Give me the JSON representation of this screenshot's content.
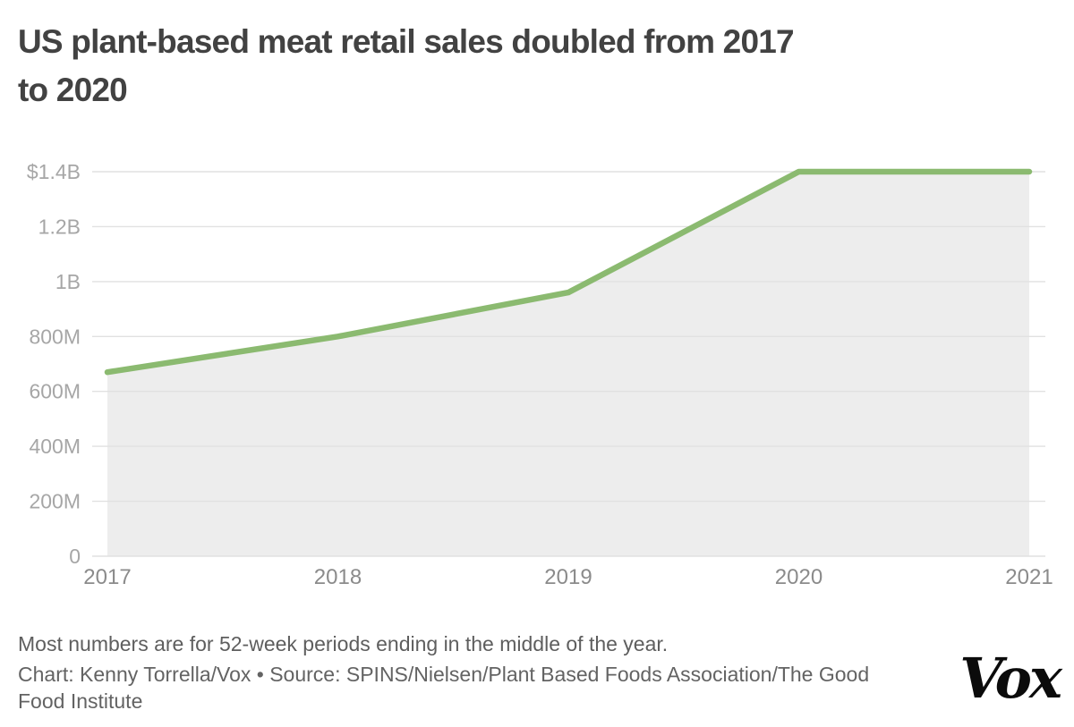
{
  "header": {
    "title_lines": [
      "US plant-based meat retail sales doubled from 2017",
      "to 2020"
    ]
  },
  "chart_data": {
    "type": "area",
    "title": "US plant-based meat retail sales doubled from 2017 to 2020",
    "x": [
      2017,
      2018,
      2019,
      2020,
      2021
    ],
    "x_tick_labels": [
      "2017",
      "2018",
      "2019",
      "2020",
      "2021"
    ],
    "series": [
      {
        "name": "US plant-based meat retail sales (USD, millions)",
        "values_millions": [
          670,
          800,
          960,
          1400,
          1400
        ]
      }
    ],
    "y_tick_values_millions": [
      1400,
      1200,
      1000,
      800,
      600,
      400,
      200,
      0
    ],
    "y_tick_labels": [
      "$1.4B",
      "1.2B",
      "1B",
      "800M",
      "600M",
      "400M",
      "200M",
      "0"
    ],
    "ylim_millions": [
      0,
      1400
    ],
    "grid": true,
    "legend": "none",
    "colors": {
      "line": "#8bba70",
      "area_fill": "#ededed",
      "gridline": "#e1e1e1",
      "y_tick_label": "#a6a6a6",
      "x_tick_label": "#8b8b8b"
    }
  },
  "footer": {
    "note": "Most numbers are for 52-week periods ending in the middle of the year.",
    "credit_lines": [
      "Chart: Kenny Torrella/Vox • Source: SPINS/Nielsen/Plant Based Foods Association/The Good",
      "Food Institute"
    ],
    "logo_text": "Vox"
  }
}
